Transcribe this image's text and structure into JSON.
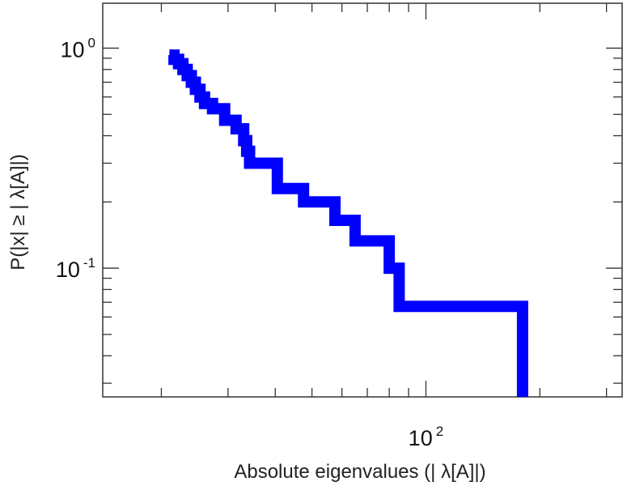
{
  "chart_data": {
    "type": "line",
    "title": "",
    "xlabel": "Absolute eigenvalues (|     λ[A]|)",
    "ylabel": "P(|x| ≥ | λ[A]|)",
    "xscale": "log",
    "yscale": "log",
    "xlim": [
      14,
      330
    ],
    "ylim": [
      0.026,
      1.6
    ],
    "grid": false,
    "legend": "none",
    "line_style": "step",
    "color": "#0000ff",
    "x_ticks": [
      {
        "base": "10",
        "exp": "2",
        "value": 100
      }
    ],
    "y_ticks": [
      {
        "base": "10",
        "exp": "-1",
        "value": 0.1
      },
      {
        "base": "10",
        "exp": "0",
        "value": 1
      }
    ],
    "series": [
      {
        "x": [
          21,
          21.6,
          22.2,
          22.8,
          23.4,
          24,
          24.6,
          25.3,
          26,
          27.3,
          29.4,
          31.5,
          33,
          33.6,
          34.2,
          40.5,
          47.5,
          57.5,
          65,
          80,
          85,
          180,
          180
        ],
        "y": [
          0.93,
          0.89,
          0.85,
          0.8,
          0.75,
          0.7,
          0.65,
          0.6,
          0.56,
          0.53,
          0.47,
          0.43,
          0.38,
          0.34,
          0.3,
          0.23,
          0.2,
          0.165,
          0.133,
          0.1,
          0.067,
          0.033,
          0.026
        ]
      }
    ]
  }
}
